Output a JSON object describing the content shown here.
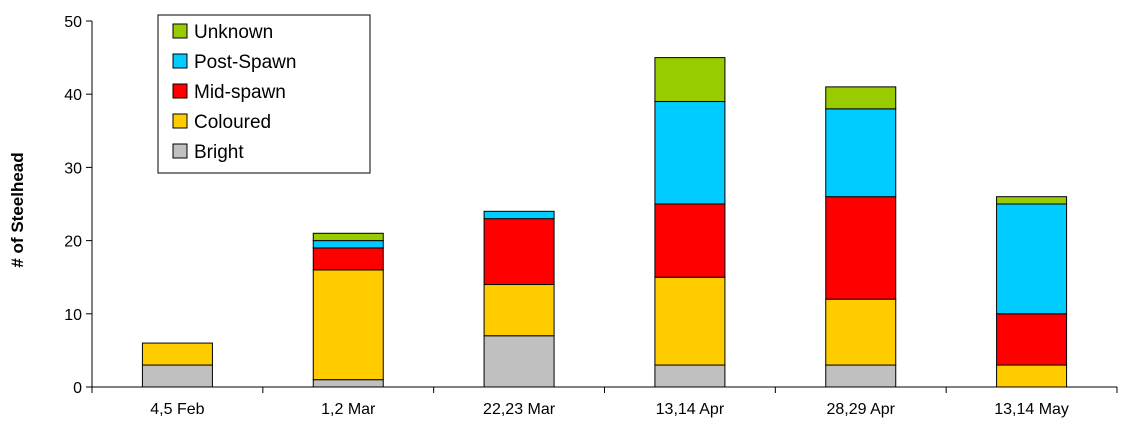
{
  "chart_data": {
    "type": "bar",
    "stacked": true,
    "title": "",
    "xlabel": "",
    "ylabel": "# of Steelhead",
    "ylim": [
      0,
      50
    ],
    "yticks": [
      0,
      10,
      20,
      30,
      40,
      50
    ],
    "grid": false,
    "legend_position": "top-left",
    "categories": [
      "4,5 Feb",
      "1,2 Mar",
      "22,23 Mar",
      "13,14 Apr",
      "28,29 Apr",
      "13,14 May"
    ],
    "series": [
      {
        "name": "Bright",
        "color": "#c0c0c0",
        "values": [
          3,
          1,
          7,
          3,
          3,
          0
        ]
      },
      {
        "name": "Coloured",
        "color": "#ffcc00",
        "values": [
          3,
          15,
          7,
          12,
          9,
          3
        ]
      },
      {
        "name": "Mid-spawn",
        "color": "#ff0000",
        "values": [
          0,
          3,
          9,
          10,
          14,
          7
        ]
      },
      {
        "name": "Post-Spawn",
        "color": "#00ccff",
        "values": [
          0,
          1,
          1,
          14,
          12,
          15
        ]
      },
      {
        "name": "Unknown",
        "color": "#99cc00",
        "values": [
          0,
          1,
          0,
          6,
          3,
          1
        ]
      }
    ]
  }
}
